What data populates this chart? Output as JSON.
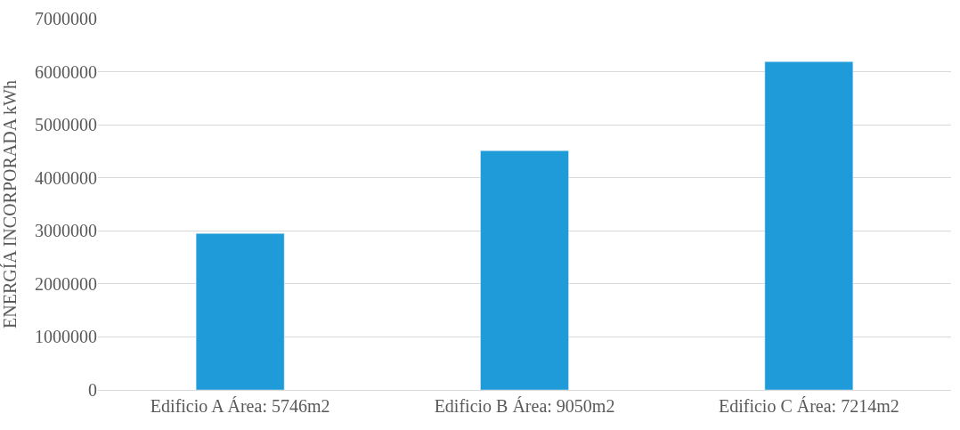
{
  "chart_data": {
    "type": "bar",
    "ylabel": "ENERGÍA INCORPORADA kWh",
    "categories": [
      "Edificio A Área: 5746m2",
      "Edificio B Área: 9050m2",
      "Edificio C Área: 7214m2"
    ],
    "values": [
      2950000,
      4510000,
      6190000
    ],
    "color": "#1f9bd9",
    "ylim": [
      0,
      7000000
    ],
    "yticks": [
      0,
      1000000,
      2000000,
      3000000,
      4000000,
      5000000,
      6000000,
      7000000
    ],
    "grid": "y"
  }
}
